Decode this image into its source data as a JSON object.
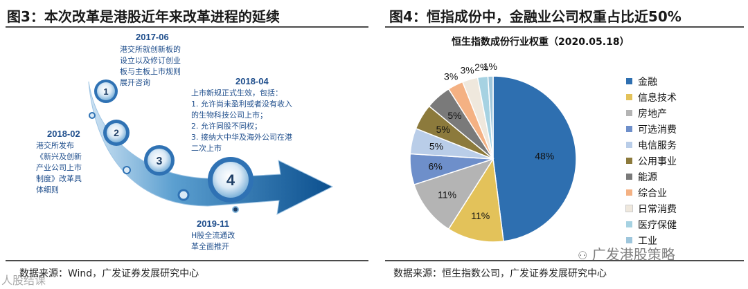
{
  "left": {
    "title": "图3：本次改革是港股近年来改革进程的延续",
    "steps": [
      "1",
      "2",
      "3",
      "4"
    ],
    "events": [
      {
        "year": "2017-06",
        "lines": [
          "港交所就创新板的",
          "设立以及修订创业",
          "板与主板上市规则",
          "展开咨询"
        ]
      },
      {
        "year": "2018-04",
        "lines": [
          "上市新规正式生效，包括：",
          "1.  允许尚未盈利或者没有收入",
          "     的生物科技公司上市；",
          "2.  允许同股不同权；",
          "3.  接纳大中华及海外公司在港",
          "     二次上市"
        ]
      },
      {
        "year": "2018-02",
        "lines": [
          "港交所发布",
          "《新兴及创新",
          "产业公司上市",
          "制度》改革具",
          "体细则"
        ]
      },
      {
        "year": "2019-11",
        "lines": [
          "H股全流通改",
          "革全面推开"
        ]
      }
    ],
    "source": "数据来源：Wind，广发证券发展研究中心",
    "watermark": "人股结课"
  },
  "right": {
    "title": "图4：恒指成份中，金融业公司权重占比近50%",
    "source": "数据来源：恒生指数公司，广发证券发展研究中心",
    "watermark": "广发港股策略"
  },
  "chart_data": {
    "type": "pie",
    "title": "恒生指数成份行业权重（2020.05.18）",
    "start": "12 o'clock, clockwise",
    "slices": [
      {
        "label": "金融",
        "value": 48,
        "display": "48%",
        "color": "#2e6fb0"
      },
      {
        "label": "信息技术",
        "value": 11,
        "display": "11%",
        "color": "#e3c25a"
      },
      {
        "label": "房地产",
        "value": 11,
        "display": "11%",
        "color": "#b4b4b4"
      },
      {
        "label": "可选消费",
        "value": 6,
        "display": "6%",
        "color": "#6e8fca"
      },
      {
        "label": "电信服务",
        "value": 5,
        "display": "5%",
        "color": "#b9cde8"
      },
      {
        "label": "公用事业",
        "value": 5,
        "display": "5%",
        "color": "#8c7a3c"
      },
      {
        "label": "能源",
        "value": 5,
        "display": "5%",
        "color": "#7a7a7a"
      },
      {
        "label": "综合业",
        "value": 3,
        "display": "3%",
        "color": "#f4b183"
      },
      {
        "label": "日常消费",
        "value": 3,
        "display": "3%",
        "color": "#efe8dd"
      },
      {
        "label": "医疗保健",
        "value": 2,
        "display": "2%",
        "color": "#a6d2e2"
      },
      {
        "label": "工业",
        "value": 1,
        "display": "1%",
        "color": "#9ec6dc"
      }
    ]
  }
}
